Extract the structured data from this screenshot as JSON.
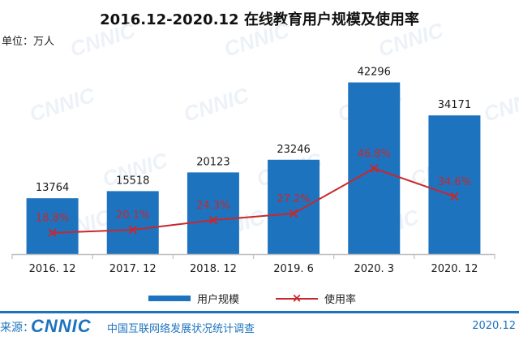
{
  "title": "2016.12-2020.12 在线教育用户规模及使用率",
  "unit_label": "单位：万人",
  "watermark": "CNNIC",
  "legend": {
    "bar": "用户规模",
    "line": "使用率"
  },
  "footer": {
    "source_label": "来源：",
    "logo_text": "CNNIC",
    "org_name": "中国互联网络发展状况统计调查",
    "date": "2020.12"
  },
  "colors": {
    "bar": "#1E73BE",
    "line": "#C8282D",
    "axis": "#BFBFBF",
    "label": "#1a1a1a"
  },
  "chart_data": {
    "type": "bar",
    "title": "2016.12-2020.12 在线教育用户规模及使用率",
    "categories": [
      "2016. 12",
      "2017. 12",
      "2018. 12",
      "2019. 6",
      "2020. 3",
      "2020. 12"
    ],
    "series": [
      {
        "name": "用户规模",
        "type": "bar",
        "values": [
          13764,
          15518,
          20123,
          23246,
          42296,
          34171
        ]
      },
      {
        "name": "使用率",
        "type": "line",
        "values": [
          18.8,
          20.1,
          24.3,
          27.2,
          46.8,
          34.6
        ],
        "labels": [
          "18.8%",
          "20.1%",
          "24.3%",
          "27.2%",
          "46.8%",
          "34.6%"
        ]
      }
    ],
    "xlabel": "",
    "ylabel": "",
    "ylim": [
      0,
      45000
    ],
    "grid": false,
    "legend_position": "bottom"
  }
}
